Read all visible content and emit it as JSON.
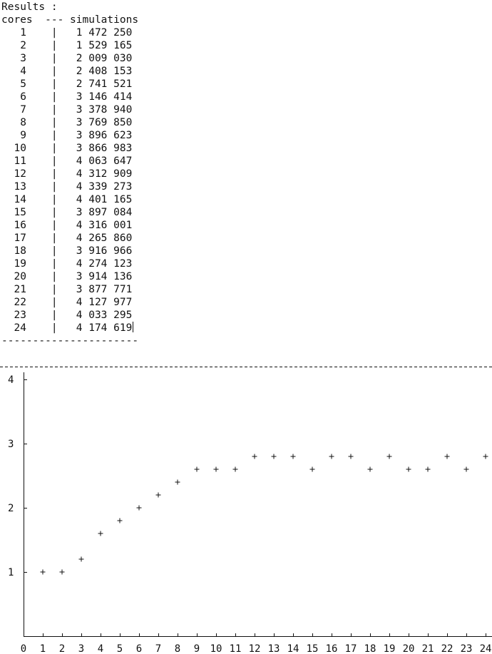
{
  "header": {
    "title": "Results :",
    "columns": "cores  --- simulations"
  },
  "rows": [
    {
      "cores": "1",
      "simulations": "1 472 250"
    },
    {
      "cores": "2",
      "simulations": "1 529 165"
    },
    {
      "cores": "3",
      "simulations": "2 009 030"
    },
    {
      "cores": "4",
      "simulations": "2 408 153"
    },
    {
      "cores": "5",
      "simulations": "2 741 521"
    },
    {
      "cores": "6",
      "simulations": "3 146 414"
    },
    {
      "cores": "7",
      "simulations": "3 378 940"
    },
    {
      "cores": "8",
      "simulations": "3 769 850"
    },
    {
      "cores": "9",
      "simulations": "3 896 623"
    },
    {
      "cores": "10",
      "simulations": "3 866 983"
    },
    {
      "cores": "11",
      "simulations": "4 063 647"
    },
    {
      "cores": "12",
      "simulations": "4 312 909"
    },
    {
      "cores": "13",
      "simulations": "4 339 273"
    },
    {
      "cores": "14",
      "simulations": "4 401 165"
    },
    {
      "cores": "15",
      "simulations": "3 897 084"
    },
    {
      "cores": "16",
      "simulations": "4 316 001"
    },
    {
      "cores": "17",
      "simulations": "4 265 860"
    },
    {
      "cores": "18",
      "simulations": "3 916 966"
    },
    {
      "cores": "19",
      "simulations": "4 274 123"
    },
    {
      "cores": "20",
      "simulations": "3 914 136"
    },
    {
      "cores": "21",
      "simulations": "3 877 771"
    },
    {
      "cores": "22",
      "simulations": "4 127 977"
    },
    {
      "cores": "23",
      "simulations": "4 033 295"
    },
    {
      "cores": "24",
      "simulations": "4 174 619"
    }
  ],
  "separator": "----------------------",
  "chart_data": {
    "type": "scatter",
    "marker": "+",
    "x": [
      1,
      2,
      3,
      4,
      5,
      6,
      7,
      8,
      9,
      10,
      11,
      12,
      13,
      14,
      15,
      16,
      17,
      18,
      19,
      20,
      21,
      22,
      23,
      24
    ],
    "y": [
      1,
      1,
      1.2,
      1.6,
      1.8,
      2,
      2.2,
      2.4,
      2.6,
      2.6,
      2.6,
      2.8,
      2.8,
      2.8,
      2.6,
      2.8,
      2.8,
      2.6,
      2.8,
      2.6,
      2.6,
      2.8,
      2.6,
      2.8
    ],
    "xlim": [
      0,
      24
    ],
    "ylim": [
      0,
      4
    ],
    "xticks": [
      "0",
      "1",
      "2",
      "3",
      "4",
      "5",
      "6",
      "7",
      "8",
      "9",
      "10",
      "11",
      "12",
      "13",
      "14",
      "15",
      "16",
      "17",
      "18",
      "19",
      "20",
      "21",
      "22",
      "23",
      "24"
    ],
    "yticks": [
      "1",
      "2",
      "3",
      "4"
    ],
    "grid": false,
    "title": "",
    "xlabel": "",
    "ylabel": ""
  }
}
